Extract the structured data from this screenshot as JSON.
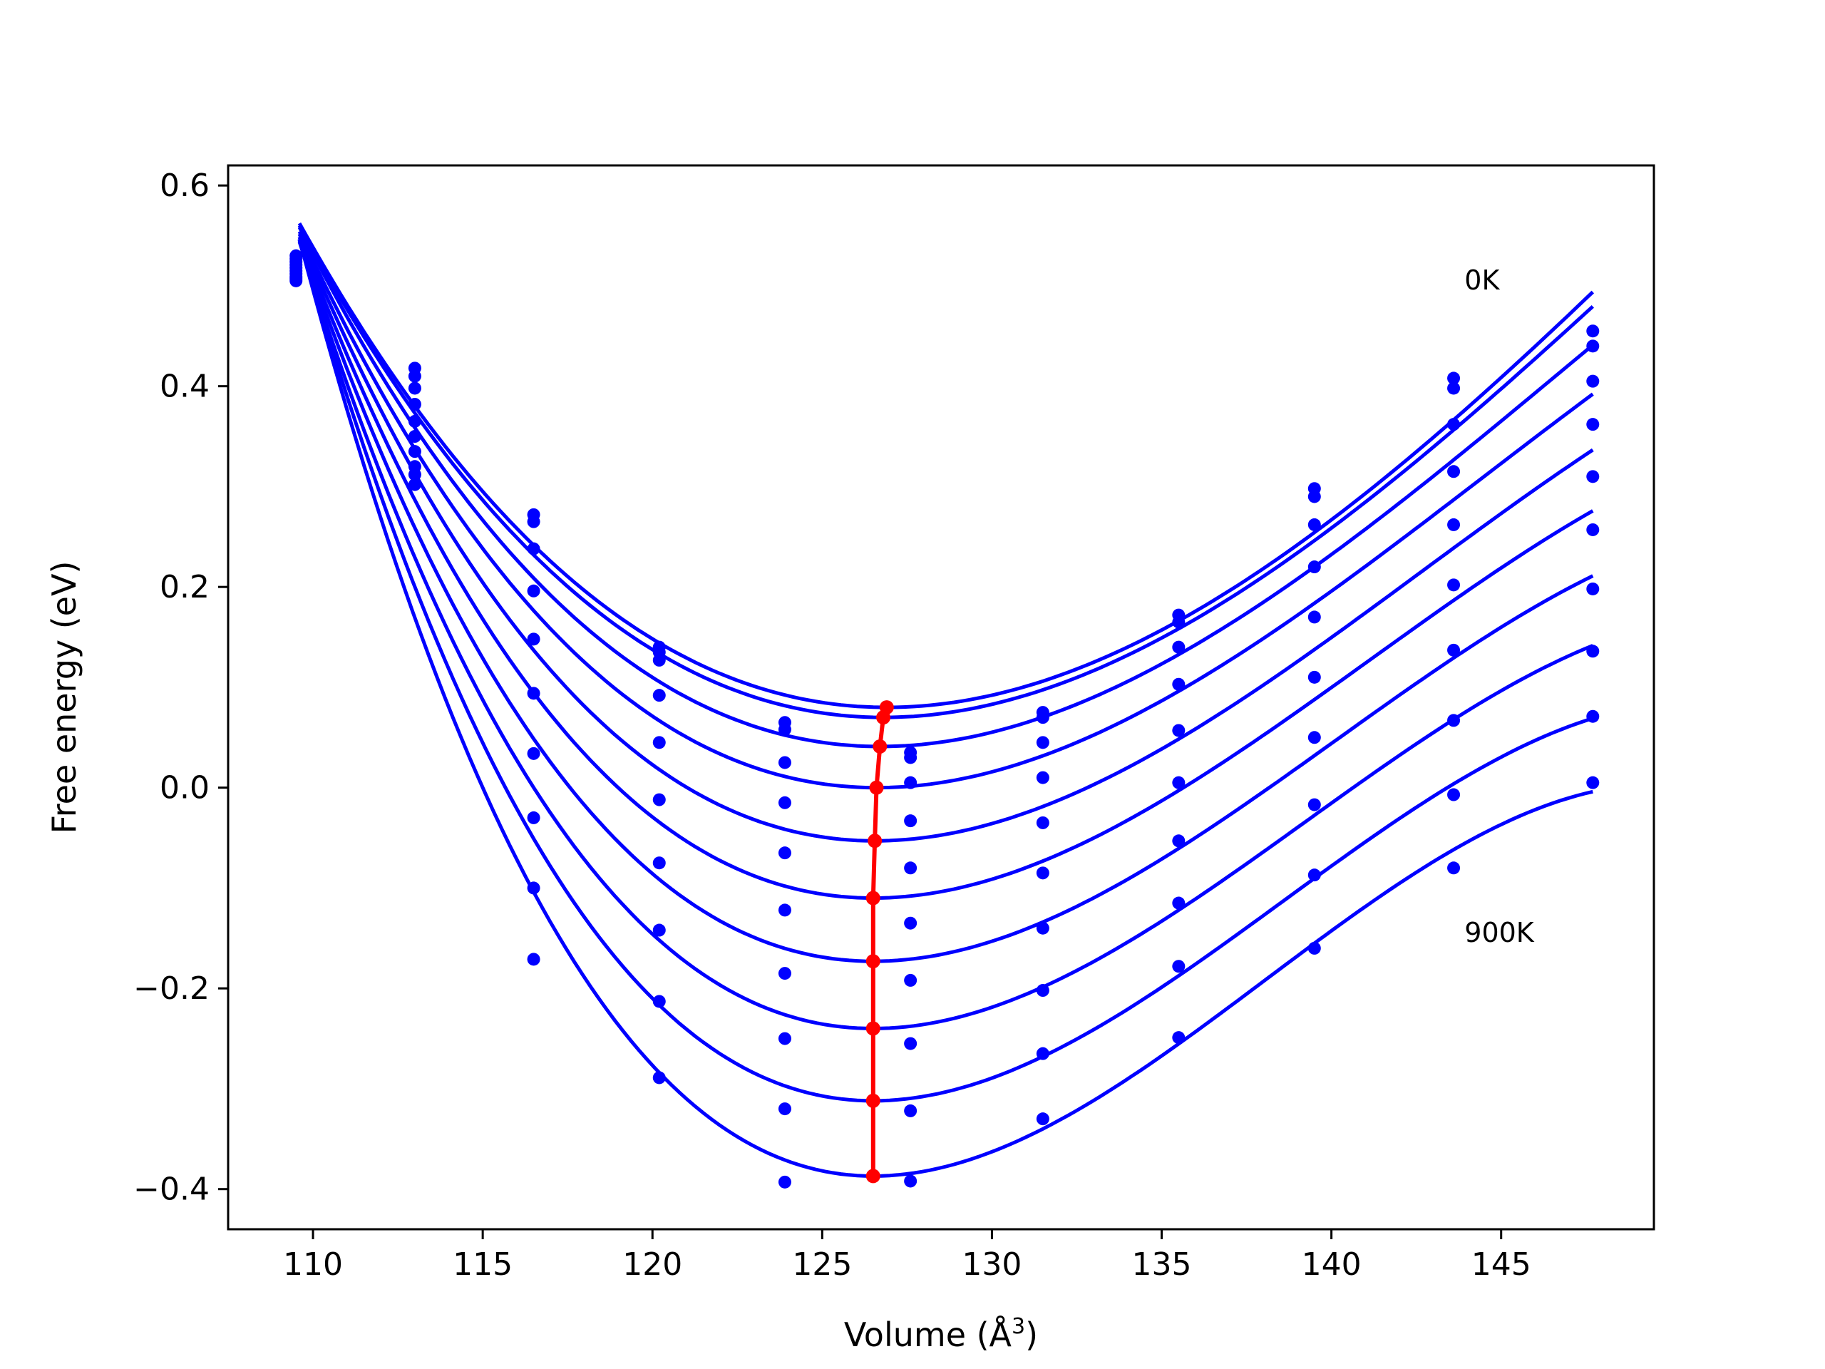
{
  "chart_data": {
    "type": "line",
    "title": "",
    "xlabel": "Volume (Å",
    "xlabel_sup": "3",
    "xlabel_close": ")",
    "ylabel": "Free energy (eV)",
    "xlim": [
      107.5,
      149.5
    ],
    "ylim": [
      -0.44,
      0.62
    ],
    "xticks": [
      110,
      115,
      120,
      125,
      130,
      135,
      140,
      145
    ],
    "yticks": [
      0.6,
      0.4,
      0.2,
      0.0,
      -0.2,
      -0.4
    ],
    "xtick_labels": [
      "110",
      "115",
      "120",
      "125",
      "130",
      "135",
      "140",
      "145"
    ],
    "ytick_labels": [
      "0.6",
      "0.4",
      "0.2",
      "0.0",
      "−0.2",
      "−0.4"
    ],
    "grid": false,
    "annotations": [
      {
        "text": "0K",
        "x": 143.5,
        "y": 0.505
      },
      {
        "text": "900K",
        "x": 143.5,
        "y": -0.145
      }
    ],
    "curve_color": "#0000ff",
    "min_line_color": "#ff0000",
    "volumes": [
      109.5,
      113.0,
      116.5,
      120.2,
      123.9,
      127.6,
      131.5,
      135.5,
      139.5,
      143.6,
      147.7
    ],
    "series": [
      {
        "values": [
          0.53,
          0.418,
          0.272,
          0.14,
          0.065,
          0.035,
          0.075,
          0.172,
          0.298,
          0.408,
          0.455
        ]
      },
      {
        "values": [
          0.527,
          0.41,
          0.265,
          0.135,
          0.058,
          0.03,
          0.07,
          0.165,
          0.29,
          0.398,
          0.44
        ]
      },
      {
        "values": [
          0.524,
          0.398,
          0.238,
          0.127,
          0.025,
          0.005,
          0.045,
          0.14,
          0.262,
          0.362,
          0.405
        ]
      },
      {
        "values": [
          0.521,
          0.382,
          0.196,
          0.092,
          -0.015,
          -0.033,
          0.01,
          0.103,
          0.22,
          0.315,
          0.362
        ]
      },
      {
        "values": [
          0.518,
          0.365,
          0.148,
          0.045,
          -0.065,
          -0.08,
          -0.035,
          0.057,
          0.17,
          0.262,
          0.31
        ]
      },
      {
        "values": [
          0.515,
          0.35,
          0.094,
          -0.012,
          -0.122,
          -0.135,
          -0.085,
          0.005,
          0.11,
          0.202,
          0.257
        ]
      },
      {
        "values": [
          0.512,
          0.335,
          0.034,
          -0.075,
          -0.185,
          -0.192,
          -0.14,
          -0.053,
          0.05,
          0.137,
          0.198
        ]
      },
      {
        "values": [
          0.509,
          0.32,
          -0.03,
          -0.142,
          -0.25,
          -0.255,
          -0.202,
          -0.115,
          -0.017,
          0.067,
          0.136
        ]
      },
      {
        "values": [
          0.507,
          0.312,
          -0.1,
          -0.213,
          -0.32,
          -0.322,
          -0.265,
          -0.178,
          -0.087,
          -0.007,
          0.071
        ]
      },
      {
        "values": [
          0.505,
          0.302,
          -0.171,
          -0.289,
          -0.393,
          -0.392,
          -0.33,
          -0.249,
          -0.16,
          -0.08,
          0.005
        ]
      }
    ],
    "minima": [
      {
        "x": 126.9,
        "y": 0.08
      },
      {
        "x": 126.8,
        "y": 0.07
      },
      {
        "x": 126.7,
        "y": 0.041
      },
      {
        "x": 126.6,
        "y": 0.0
      },
      {
        "x": 126.55,
        "y": -0.053
      },
      {
        "x": 126.5,
        "y": -0.11
      },
      {
        "x": 126.5,
        "y": -0.173
      },
      {
        "x": 126.5,
        "y": -0.24
      },
      {
        "x": 126.5,
        "y": -0.312
      },
      {
        "x": 126.5,
        "y": -0.387
      }
    ]
  }
}
